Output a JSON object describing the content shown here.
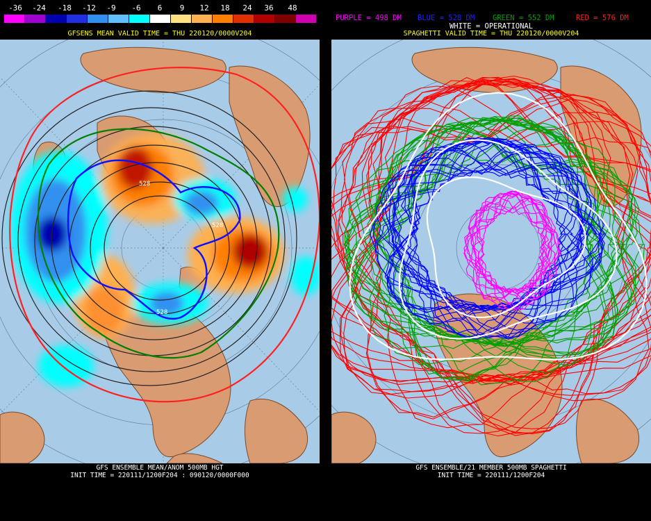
{
  "left": {
    "legend_ticks": [
      "-36",
      "-24",
      "-18",
      "-12",
      "-9",
      "-6",
      "6",
      "9",
      "12",
      "18",
      "24",
      "36",
      "48"
    ],
    "legend_colors": [
      "#ff00ff",
      "#a000d0",
      "#0000b0",
      "#2030e0",
      "#3090f0",
      "#60c0ff",
      "#00ffff",
      "#ffffff",
      "#ffe080",
      "#ffb050",
      "#ff8000",
      "#e03000",
      "#b00000",
      "#800000",
      "#d000b0"
    ],
    "title": "GFSENS MEAN VALID TIME = THU 220120/0000V204",
    "contour_label_1": "528",
    "contour_label_2": "528",
    "contour_label_3": "528",
    "bottom_line_1": "GFS ENSEMBLE MEAN/ANOM 500MB HGT",
    "bottom_line_2": "INIT TIME = 220111/1200F204 : 090120/0000F000"
  },
  "right": {
    "legend_purple": "PURPLE = 498 DM",
    "legend_blue": "BLUE = 528 DM",
    "legend_green": "GREEN = 552 DM",
    "legend_red": "RED = 576 DM",
    "legend_colors": {
      "purple": "#ff00ff",
      "blue": "#0000ff",
      "green": "#00a000",
      "red": "#ff0000",
      "white": "#ffffff"
    },
    "operational": "WHITE = OPERATIONAL",
    "title": "SPAGHETTI VALID TIME = THU 220120/0000V204",
    "bottom_line_1": "GFS ENSEMBLE/21 MEMBER 500MB SPAGHETTI",
    "bottom_line_2": "INIT TIME = 220111/1200F204"
  },
  "colors": {
    "ocean": "#a8cbe8",
    "land": "#d99c72",
    "coast": "#7a4a2a",
    "grid": "#5a7088"
  }
}
